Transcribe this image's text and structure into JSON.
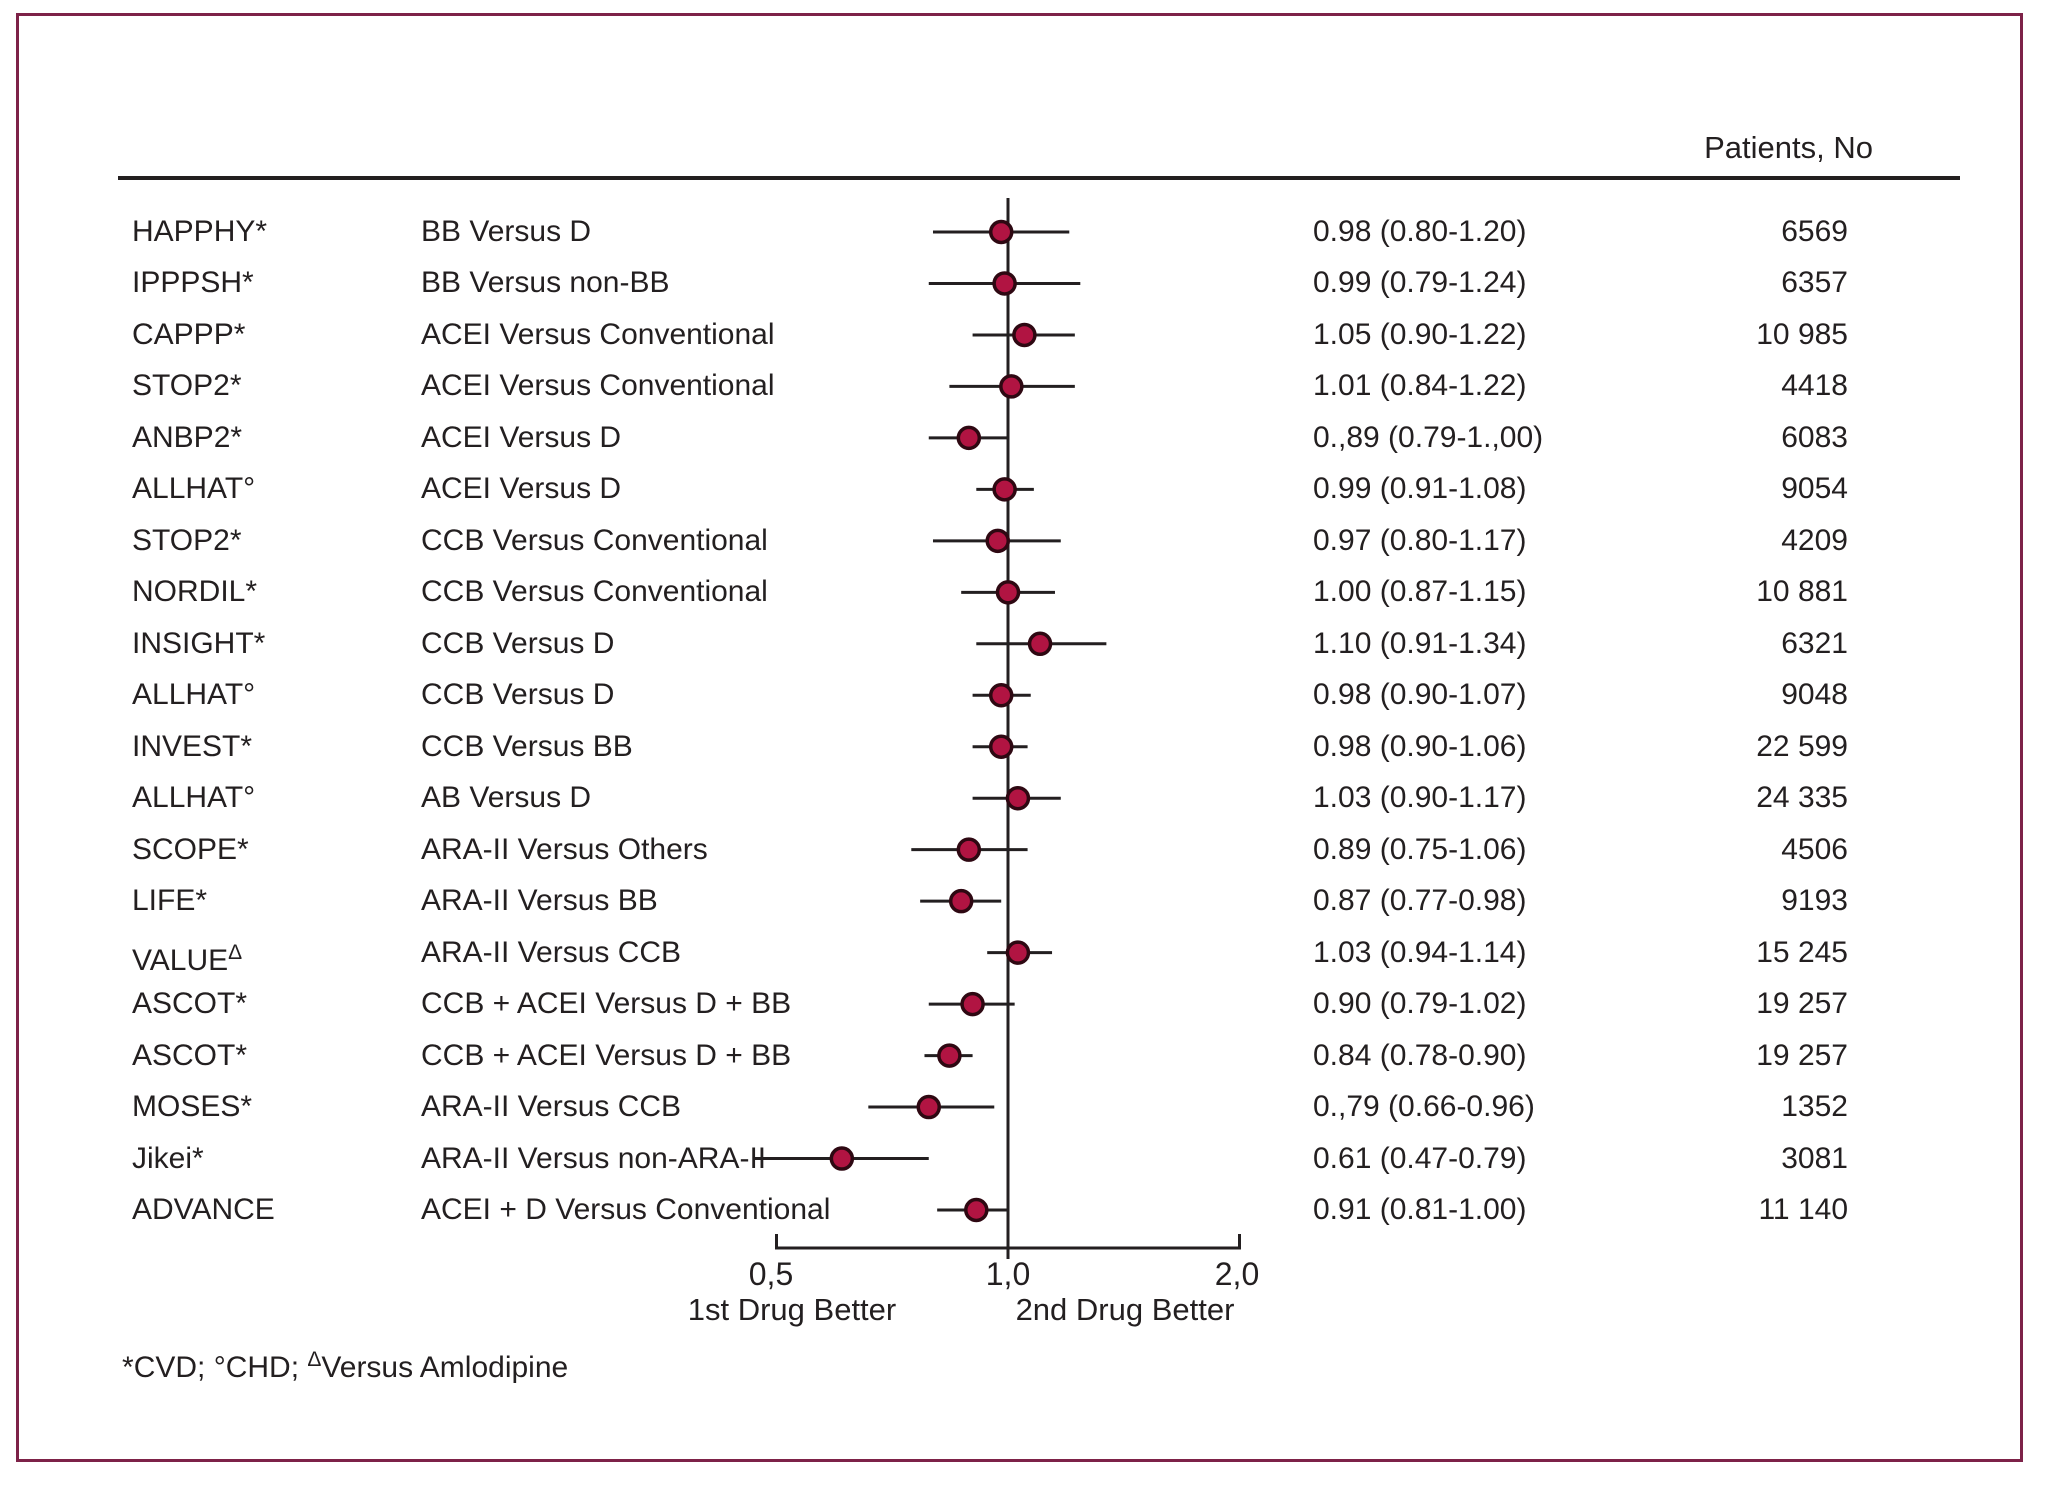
{
  "figure": {
    "patients_header": "Patients, No",
    "footnote_parts": [
      {
        "sup": "*",
        "text": "CVD; "
      },
      {
        "sup": "°",
        "text": "CHD; "
      },
      {
        "sup": "Δ",
        "text": "Versus Amlodipine"
      }
    ]
  },
  "chart_data": {
    "type": "forest",
    "x_scale": "log",
    "x_axis": {
      "reference_value": 1.0,
      "ticks": [
        {
          "label": "0,5",
          "value": 0.5
        },
        {
          "label": "1,0",
          "value": 1.0
        },
        {
          "label": "2,0",
          "value": 2.0
        }
      ],
      "left_region_label": "1st Drug Better",
      "right_region_label": "2nd Drug Better"
    },
    "marker_color": "#b11442",
    "marker_stroke": "#2e0812",
    "line_color": "#231f20",
    "rows": [
      {
        "trial": "HAPPHY",
        "trial_sup": "*",
        "comparison": "BB Versus D",
        "est": 0.98,
        "low": 0.8,
        "high": 1.2,
        "label": "0.98 (0.80-1.20)",
        "patients": "6569"
      },
      {
        "trial": "IPPPSH",
        "trial_sup": "*",
        "comparison": "BB Versus non-BB",
        "est": 0.99,
        "low": 0.79,
        "high": 1.24,
        "label": "0.99 (0.79-1.24)",
        "patients": "6357"
      },
      {
        "trial": "CAPPP",
        "trial_sup": "*",
        "comparison": "ACEI Versus Conventional",
        "est": 1.05,
        "low": 0.9,
        "high": 1.22,
        "label": "1.05 (0.90-1.22)",
        "patients": "10 985"
      },
      {
        "trial": "STOP2",
        "trial_sup": "*",
        "comparison": "ACEI Versus Conventional",
        "est": 1.01,
        "low": 0.84,
        "high": 1.22,
        "label": "1.01 (0.84-1.22)",
        "patients": "4418"
      },
      {
        "trial": "ANBP2",
        "trial_sup": "*",
        "comparison": "ACEI Versus D",
        "est": 0.89,
        "low": 0.79,
        "high": 1.0,
        "label": "0.,89 (0.79-1.,00)",
        "patients": "6083"
      },
      {
        "trial": "ALLHAT",
        "trial_sup": "°",
        "comparison": "ACEI Versus D",
        "est": 0.99,
        "low": 0.91,
        "high": 1.08,
        "label": "0.99 (0.91-1.08)",
        "patients": "9054"
      },
      {
        "trial": "STOP2",
        "trial_sup": "*",
        "comparison": "CCB Versus Conventional",
        "est": 0.97,
        "low": 0.8,
        "high": 1.17,
        "label": "0.97 (0.80-1.17)",
        "patients": "4209"
      },
      {
        "trial": "NORDIL",
        "trial_sup": "*",
        "comparison": "CCB Versus Conventional",
        "est": 1.0,
        "low": 0.87,
        "high": 1.15,
        "label": "1.00 (0.87-1.15)",
        "patients": "10 881"
      },
      {
        "trial": "INSIGHT",
        "trial_sup": "*",
        "comparison": "CCB Versus D",
        "est": 1.1,
        "low": 0.91,
        "high": 1.34,
        "label": "1.10 (0.91-1.34)",
        "patients": "6321"
      },
      {
        "trial": "ALLHAT",
        "trial_sup": "°",
        "comparison": "CCB Versus D",
        "est": 0.98,
        "low": 0.9,
        "high": 1.07,
        "label": "0.98 (0.90-1.07)",
        "patients": "9048"
      },
      {
        "trial": "INVEST",
        "trial_sup": "*",
        "comparison": "CCB Versus BB",
        "est": 0.98,
        "low": 0.9,
        "high": 1.06,
        "label": "0.98 (0.90-1.06)",
        "patients": "22 599"
      },
      {
        "trial": "ALLHAT",
        "trial_sup": "°",
        "comparison": "AB Versus D",
        "est": 1.03,
        "low": 0.9,
        "high": 1.17,
        "label": "1.03 (0.90-1.17)",
        "patients": "24 335"
      },
      {
        "trial": "SCOPE",
        "trial_sup": "*",
        "comparison": "ARA-II Versus Others",
        "est": 0.89,
        "low": 0.75,
        "high": 1.06,
        "label": "0.89 (0.75-1.06)",
        "patients": "4506"
      },
      {
        "trial": "LIFE",
        "trial_sup": "*",
        "comparison": "ARA-II Versus BB",
        "est": 0.87,
        "low": 0.77,
        "high": 0.98,
        "label": "0.87 (0.77-0.98)",
        "patients": "9193"
      },
      {
        "trial": "VALUE",
        "trial_sup": "Δ",
        "comparison": "ARA-II Versus CCB",
        "est": 1.03,
        "low": 0.94,
        "high": 1.14,
        "label": "1.03 (0.94-1.14)",
        "patients": "15 245"
      },
      {
        "trial": "ASCOT",
        "trial_sup": "*",
        "comparison": "CCB + ACEI Versus D + BB",
        "est": 0.9,
        "low": 0.79,
        "high": 1.02,
        "label": "0.90 (0.79-1.02)",
        "patients": "19 257"
      },
      {
        "trial": "ASCOT",
        "trial_sup": "*",
        "comparison": "CCB + ACEI Versus D + BB",
        "est": 0.84,
        "low": 0.78,
        "high": 0.9,
        "label": "0.84 (0.78-0.90)",
        "patients": "19 257"
      },
      {
        "trial": "MOSES",
        "trial_sup": "*",
        "comparison": "ARA-II Versus CCB",
        "est": 0.79,
        "low": 0.66,
        "high": 0.96,
        "label": "0.,79 (0.66-0.96)",
        "patients": "1352"
      },
      {
        "trial": "Jikei",
        "trial_sup": "*",
        "comparison": "ARA-II Versus non-ARA-II",
        "est": 0.61,
        "low": 0.47,
        "high": 0.79,
        "label": "0.61 (0.47-0.79)",
        "patients": "3081"
      },
      {
        "trial": "ADVANCE",
        "trial_sup": "",
        "comparison": "ACEI + D Versus Conventional",
        "est": 0.91,
        "low": 0.81,
        "high": 1.0,
        "label": "0.91 (0.81-1.00)",
        "patients": "11 140"
      }
    ]
  }
}
